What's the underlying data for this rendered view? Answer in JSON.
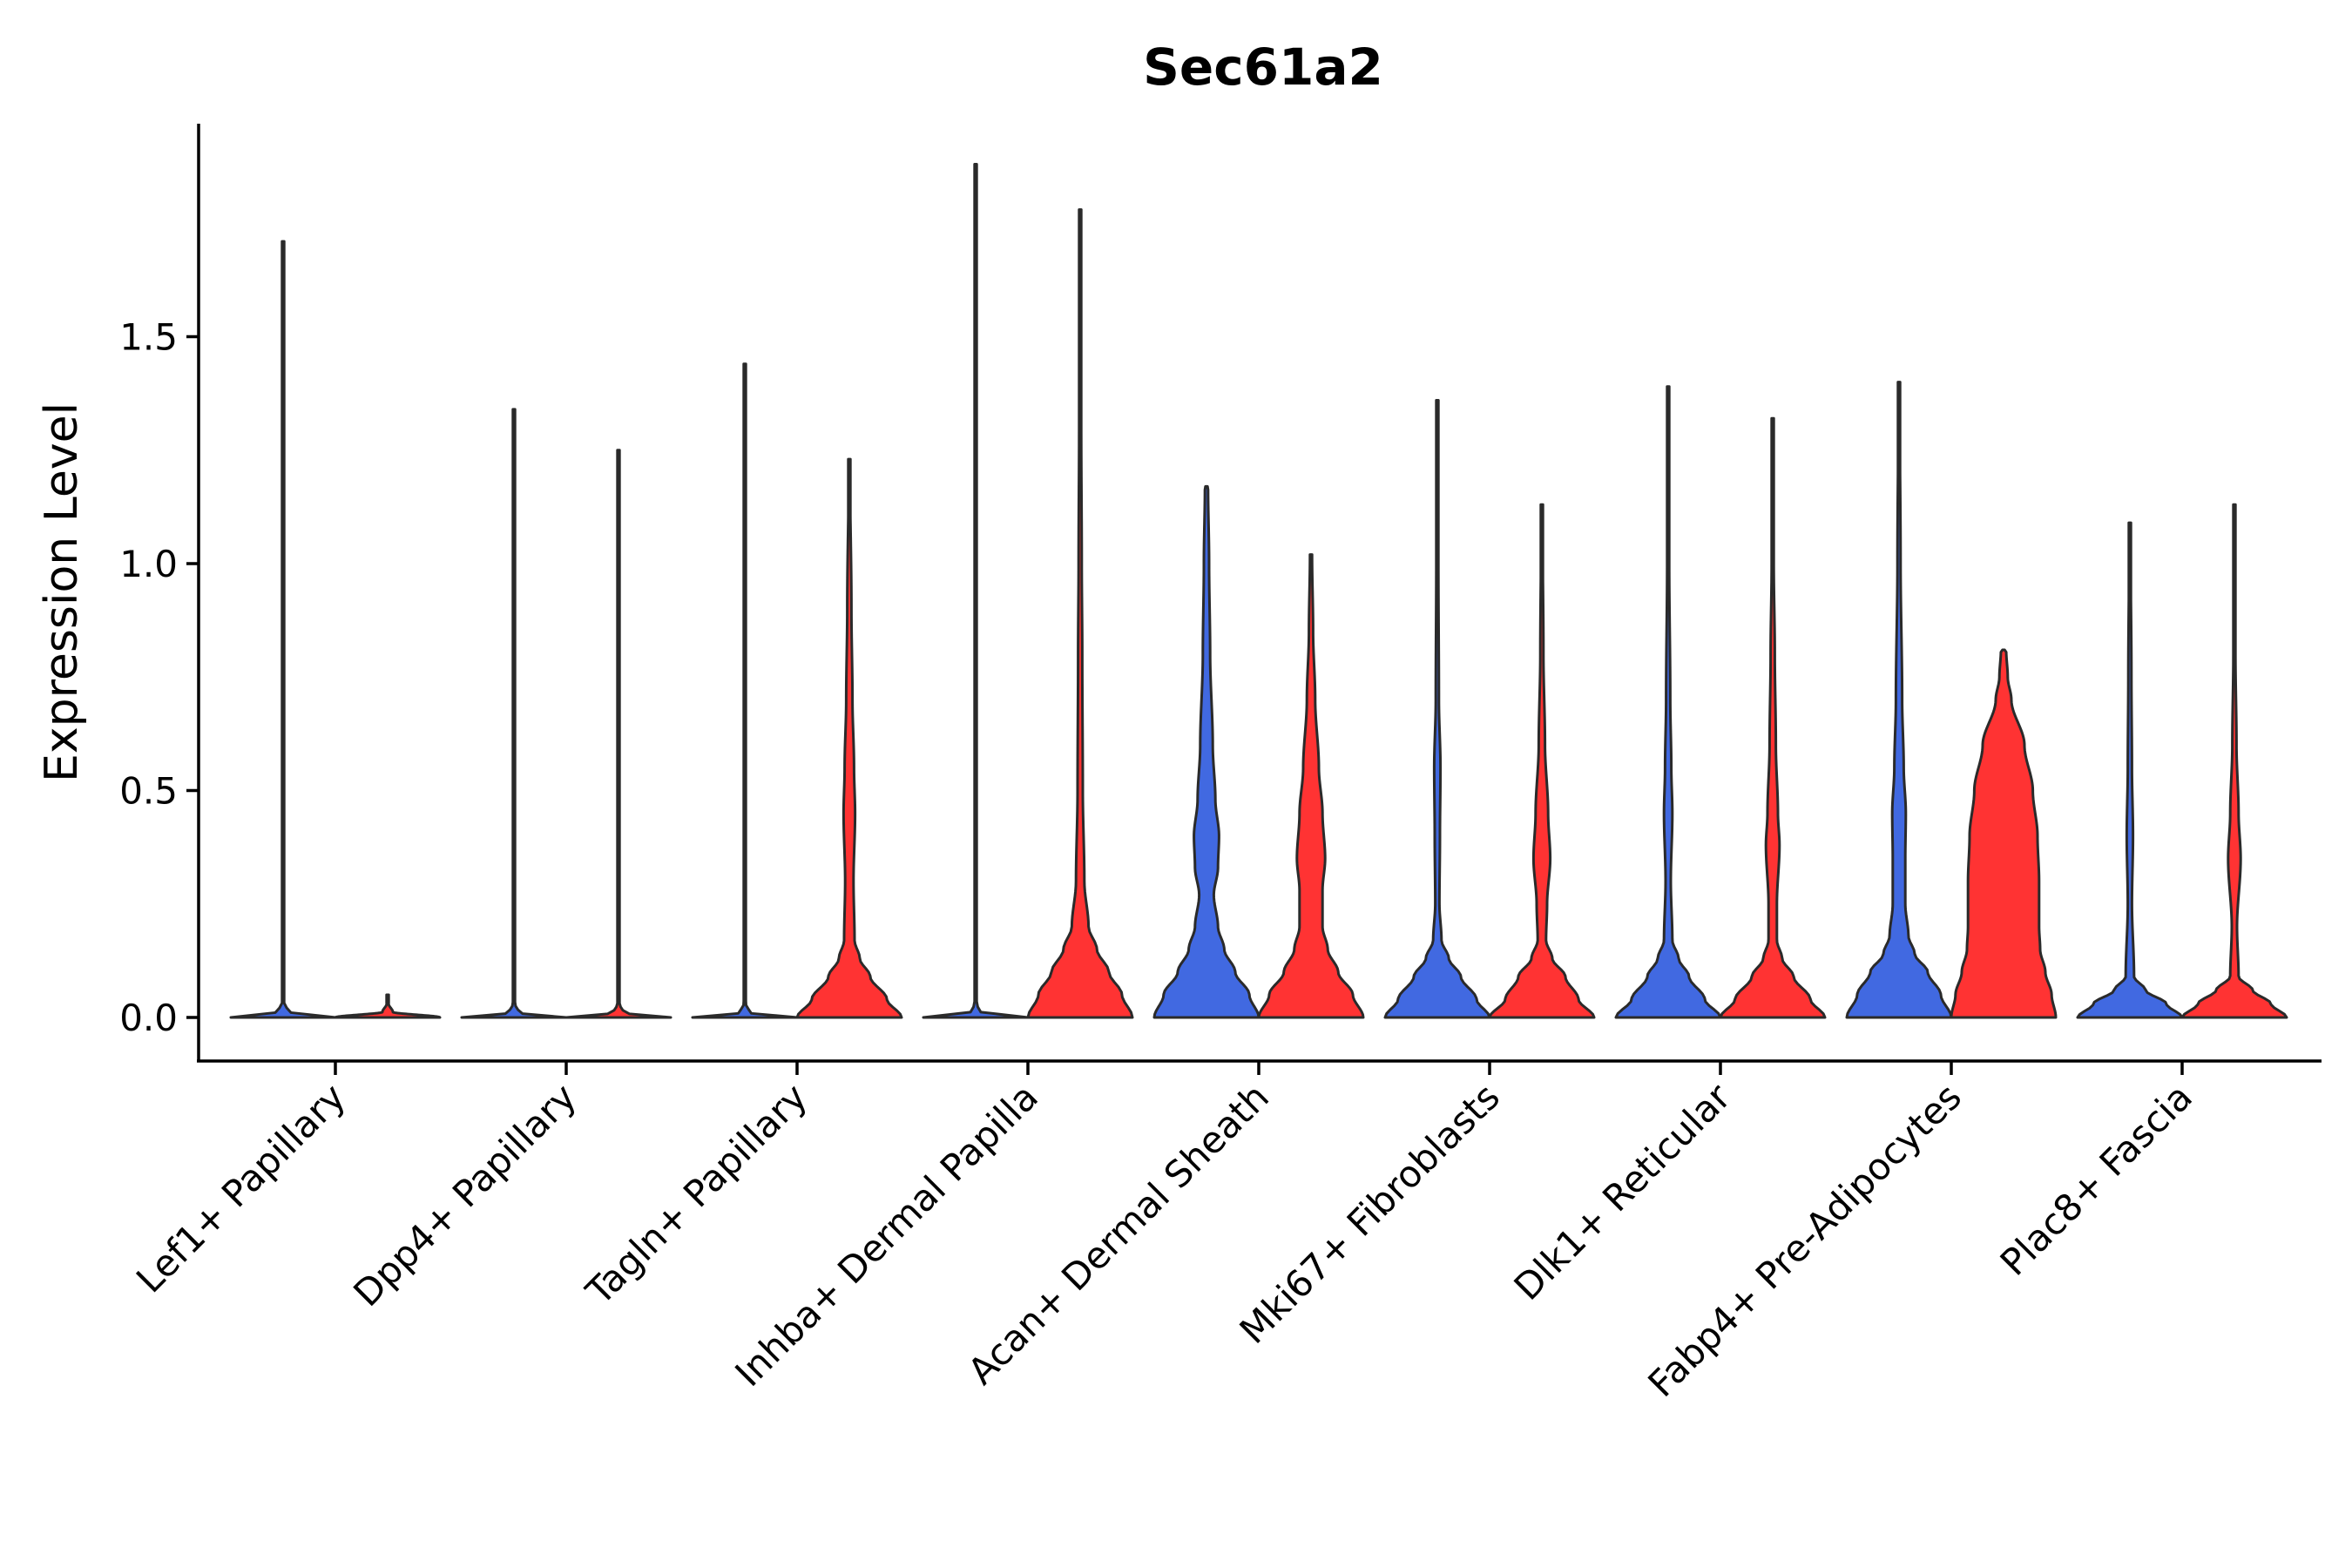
{
  "chart_data": {
    "type": "violin",
    "title": "Sec61a2",
    "xlabel": "",
    "ylabel": "Expression Level",
    "ylim": [
      -0.09,
      1.97
    ],
    "yticks": [
      0.0,
      0.5,
      1.0,
      1.5
    ],
    "ytick_labels": [
      "0.0",
      "0.5",
      "1.0",
      "1.5"
    ],
    "legend": "none",
    "colors": {
      "left": "#4169E1",
      "right": "#FF3333",
      "outline": "#2a2a2a"
    },
    "categories": [
      "Lef1+ Papillary",
      "Dpp4+ Papillary",
      "Tagln+ Papillary",
      "Inhba+ Dermal Papilla",
      "Acan+ Dermal Sheath",
      "Mki67+ Fibroblasts",
      "Dlk1+ Reticular",
      "Fabp4+ Pre-Adipocytes",
      "Plac8+ Fascia"
    ],
    "series": [
      {
        "name": "left",
        "max_values": [
          1.71,
          1.34,
          1.44,
          1.88,
          1.17,
          1.36,
          1.39,
          1.4,
          1.09
        ],
        "profiles": [
          [
            [
              0,
              1.0
            ],
            [
              0.012,
              0.12
            ],
            [
              0.03,
              0.02
            ],
            [
              1.71,
              0.01
            ]
          ],
          [
            [
              0,
              1.0
            ],
            [
              0.01,
              0.1
            ],
            [
              0.03,
              0.02
            ],
            [
              1.34,
              0.01
            ]
          ],
          [
            [
              0,
              1.0
            ],
            [
              0.01,
              0.1
            ],
            [
              0.03,
              0.02
            ],
            [
              1.44,
              0.01
            ]
          ],
          [
            [
              0,
              1.0
            ],
            [
              0.01,
              0.1
            ],
            [
              0.03,
              0.02
            ],
            [
              1.88,
              0.01
            ]
          ],
          [
            [
              0,
              1.0
            ],
            [
              0.05,
              0.82
            ],
            [
              0.1,
              0.55
            ],
            [
              0.15,
              0.34
            ],
            [
              0.2,
              0.22
            ],
            [
              0.27,
              0.14
            ],
            [
              0.33,
              0.22
            ],
            [
              0.4,
              0.24
            ],
            [
              0.48,
              0.17
            ],
            [
              0.6,
              0.12
            ],
            [
              0.8,
              0.07
            ],
            [
              1.0,
              0.05
            ],
            [
              1.17,
              0.03
            ]
          ],
          [
            [
              0,
              1.0
            ],
            [
              0.04,
              0.75
            ],
            [
              0.09,
              0.45
            ],
            [
              0.13,
              0.22
            ],
            [
              0.17,
              0.08
            ],
            [
              0.25,
              0.04
            ],
            [
              0.4,
              0.05
            ],
            [
              0.55,
              0.06
            ],
            [
              0.7,
              0.03
            ],
            [
              1.0,
              0.02
            ],
            [
              1.36,
              0.01
            ]
          ],
          [
            [
              0,
              1.0
            ],
            [
              0.04,
              0.7
            ],
            [
              0.09,
              0.4
            ],
            [
              0.13,
              0.2
            ],
            [
              0.17,
              0.08
            ],
            [
              0.3,
              0.05
            ],
            [
              0.45,
              0.08
            ],
            [
              0.55,
              0.06
            ],
            [
              0.7,
              0.04
            ],
            [
              1.0,
              0.02
            ],
            [
              1.39,
              0.01
            ]
          ],
          [
            [
              0,
              1.0
            ],
            [
              0.05,
              0.8
            ],
            [
              0.1,
              0.55
            ],
            [
              0.14,
              0.3
            ],
            [
              0.18,
              0.18
            ],
            [
              0.25,
              0.12
            ],
            [
              0.35,
              0.12
            ],
            [
              0.45,
              0.13
            ],
            [
              0.55,
              0.09
            ],
            [
              0.7,
              0.06
            ],
            [
              1.0,
              0.03
            ],
            [
              1.4,
              0.01
            ]
          ],
          [
            [
              0,
              1.0
            ],
            [
              0.03,
              0.7
            ],
            [
              0.06,
              0.3
            ],
            [
              0.09,
              0.08
            ],
            [
              0.25,
              0.04
            ],
            [
              0.4,
              0.06
            ],
            [
              0.55,
              0.04
            ],
            [
              0.75,
              0.03
            ],
            [
              1.09,
              0.01
            ]
          ]
        ]
      },
      {
        "name": "right",
        "max_values": [
          0.0,
          1.25,
          1.23,
          1.78,
          1.02,
          1.13,
          1.32,
          0.81,
          1.13
        ],
        "profiles": [
          [
            [
              0,
              1.0
            ],
            [
              0.012,
              0.1
            ],
            [
              0.03,
              0.02
            ],
            [
              0.05,
              0.0
            ]
          ],
          [
            [
              0,
              1.0
            ],
            [
              0.01,
              0.1
            ],
            [
              0.03,
              0.02
            ],
            [
              1.25,
              0.01
            ]
          ],
          [
            [
              0,
              1.0
            ],
            [
              0.04,
              0.72
            ],
            [
              0.09,
              0.4
            ],
            [
              0.13,
              0.2
            ],
            [
              0.17,
              0.1
            ],
            [
              0.3,
              0.08
            ],
            [
              0.45,
              0.11
            ],
            [
              0.55,
              0.09
            ],
            [
              0.7,
              0.06
            ],
            [
              0.9,
              0.04
            ],
            [
              1.23,
              0.01
            ]
          ],
          [
            [
              0,
              1.0
            ],
            [
              0.05,
              0.8
            ],
            [
              0.1,
              0.55
            ],
            [
              0.15,
              0.32
            ],
            [
              0.2,
              0.16
            ],
            [
              0.3,
              0.08
            ],
            [
              0.5,
              0.05
            ],
            [
              0.8,
              0.04
            ],
            [
              1.0,
              0.03
            ],
            [
              1.3,
              0.02
            ],
            [
              1.78,
              0.01
            ]
          ],
          [
            [
              0,
              1.0
            ],
            [
              0.05,
              0.8
            ],
            [
              0.1,
              0.52
            ],
            [
              0.15,
              0.32
            ],
            [
              0.2,
              0.22
            ],
            [
              0.28,
              0.22
            ],
            [
              0.35,
              0.27
            ],
            [
              0.45,
              0.22
            ],
            [
              0.55,
              0.15
            ],
            [
              0.7,
              0.08
            ],
            [
              0.85,
              0.04
            ],
            [
              1.02,
              0.02
            ]
          ],
          [
            [
              0,
              1.0
            ],
            [
              0.04,
              0.7
            ],
            [
              0.09,
              0.45
            ],
            [
              0.13,
              0.2
            ],
            [
              0.17,
              0.08
            ],
            [
              0.25,
              0.1
            ],
            [
              0.35,
              0.16
            ],
            [
              0.45,
              0.12
            ],
            [
              0.6,
              0.06
            ],
            [
              0.8,
              0.03
            ],
            [
              1.13,
              0.01
            ]
          ],
          [
            [
              0,
              1.0
            ],
            [
              0.04,
              0.72
            ],
            [
              0.09,
              0.4
            ],
            [
              0.13,
              0.18
            ],
            [
              0.17,
              0.08
            ],
            [
              0.25,
              0.08
            ],
            [
              0.38,
              0.13
            ],
            [
              0.45,
              0.1
            ],
            [
              0.6,
              0.06
            ],
            [
              0.8,
              0.04
            ],
            [
              1.0,
              0.02
            ],
            [
              1.32,
              0.01
            ]
          ],
          [
            [
              0,
              1.0
            ],
            [
              0.05,
              0.92
            ],
            [
              0.1,
              0.8
            ],
            [
              0.15,
              0.7
            ],
            [
              0.2,
              0.68
            ],
            [
              0.3,
              0.68
            ],
            [
              0.4,
              0.65
            ],
            [
              0.5,
              0.56
            ],
            [
              0.6,
              0.4
            ],
            [
              0.7,
              0.15
            ],
            [
              0.75,
              0.08
            ],
            [
              0.81,
              0.05
            ]
          ],
          [
            [
              0,
              1.0
            ],
            [
              0.03,
              0.7
            ],
            [
              0.06,
              0.35
            ],
            [
              0.09,
              0.08
            ],
            [
              0.2,
              0.05
            ],
            [
              0.35,
              0.12
            ],
            [
              0.45,
              0.08
            ],
            [
              0.6,
              0.04
            ],
            [
              0.8,
              0.02
            ],
            [
              1.13,
              0.01
            ]
          ]
        ]
      }
    ]
  }
}
